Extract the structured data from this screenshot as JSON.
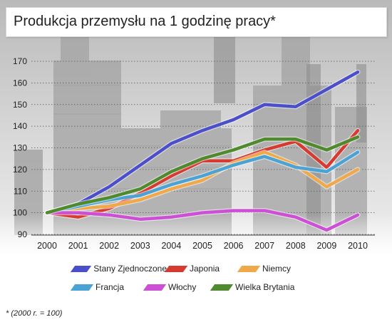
{
  "page": {
    "title": "Produkcja przemysłu na 1 godzinę pracy*",
    "footnote": "* (2000 r. = 100)"
  },
  "chart_data": {
    "type": "line",
    "title": "Produkcja przemysłu na 1 godzinę pracy*",
    "xlabel": "",
    "ylabel": "",
    "x": [
      "2000",
      "2001",
      "2002",
      "2003",
      "2004",
      "2005",
      "2006",
      "2007",
      "2008",
      "2009",
      "2010"
    ],
    "ylim": [
      90,
      170
    ],
    "yticks": [
      90,
      100,
      110,
      120,
      130,
      140,
      150,
      160,
      170
    ],
    "grid": "horizontal dotted",
    "legend_placement": "bottom",
    "series": [
      {
        "name": "Stany Zjednoczone",
        "color": "#4b4fc9",
        "values": [
          100,
          104,
          112,
          122,
          132,
          138,
          143,
          150,
          149,
          157,
          165
        ]
      },
      {
        "name": "Japonia",
        "color": "#d63b32",
        "values": [
          100,
          98,
          102,
          109,
          117,
          124,
          124,
          129,
          133,
          121,
          138
        ]
      },
      {
        "name": "Niemcy",
        "color": "#f0a94a",
        "values": [
          100,
          102,
          103,
          106,
          111,
          115,
          123,
          128,
          122,
          112,
          120
        ]
      },
      {
        "name": "Francja",
        "color": "#4aa3d4",
        "values": [
          100,
          103,
          106,
          108,
          113,
          117,
          122,
          126,
          121,
          119,
          128
        ]
      },
      {
        "name": "Włochy",
        "color": "#cc4fd6",
        "values": [
          100,
          100,
          99,
          97,
          98,
          100,
          101,
          101,
          98,
          92,
          99
        ]
      },
      {
        "name": "Wielka Brytania",
        "color": "#4f8a2e",
        "values": [
          100,
          104,
          107,
          111,
          119,
          125,
          129,
          134,
          134,
          129,
          135
        ]
      }
    ]
  }
}
